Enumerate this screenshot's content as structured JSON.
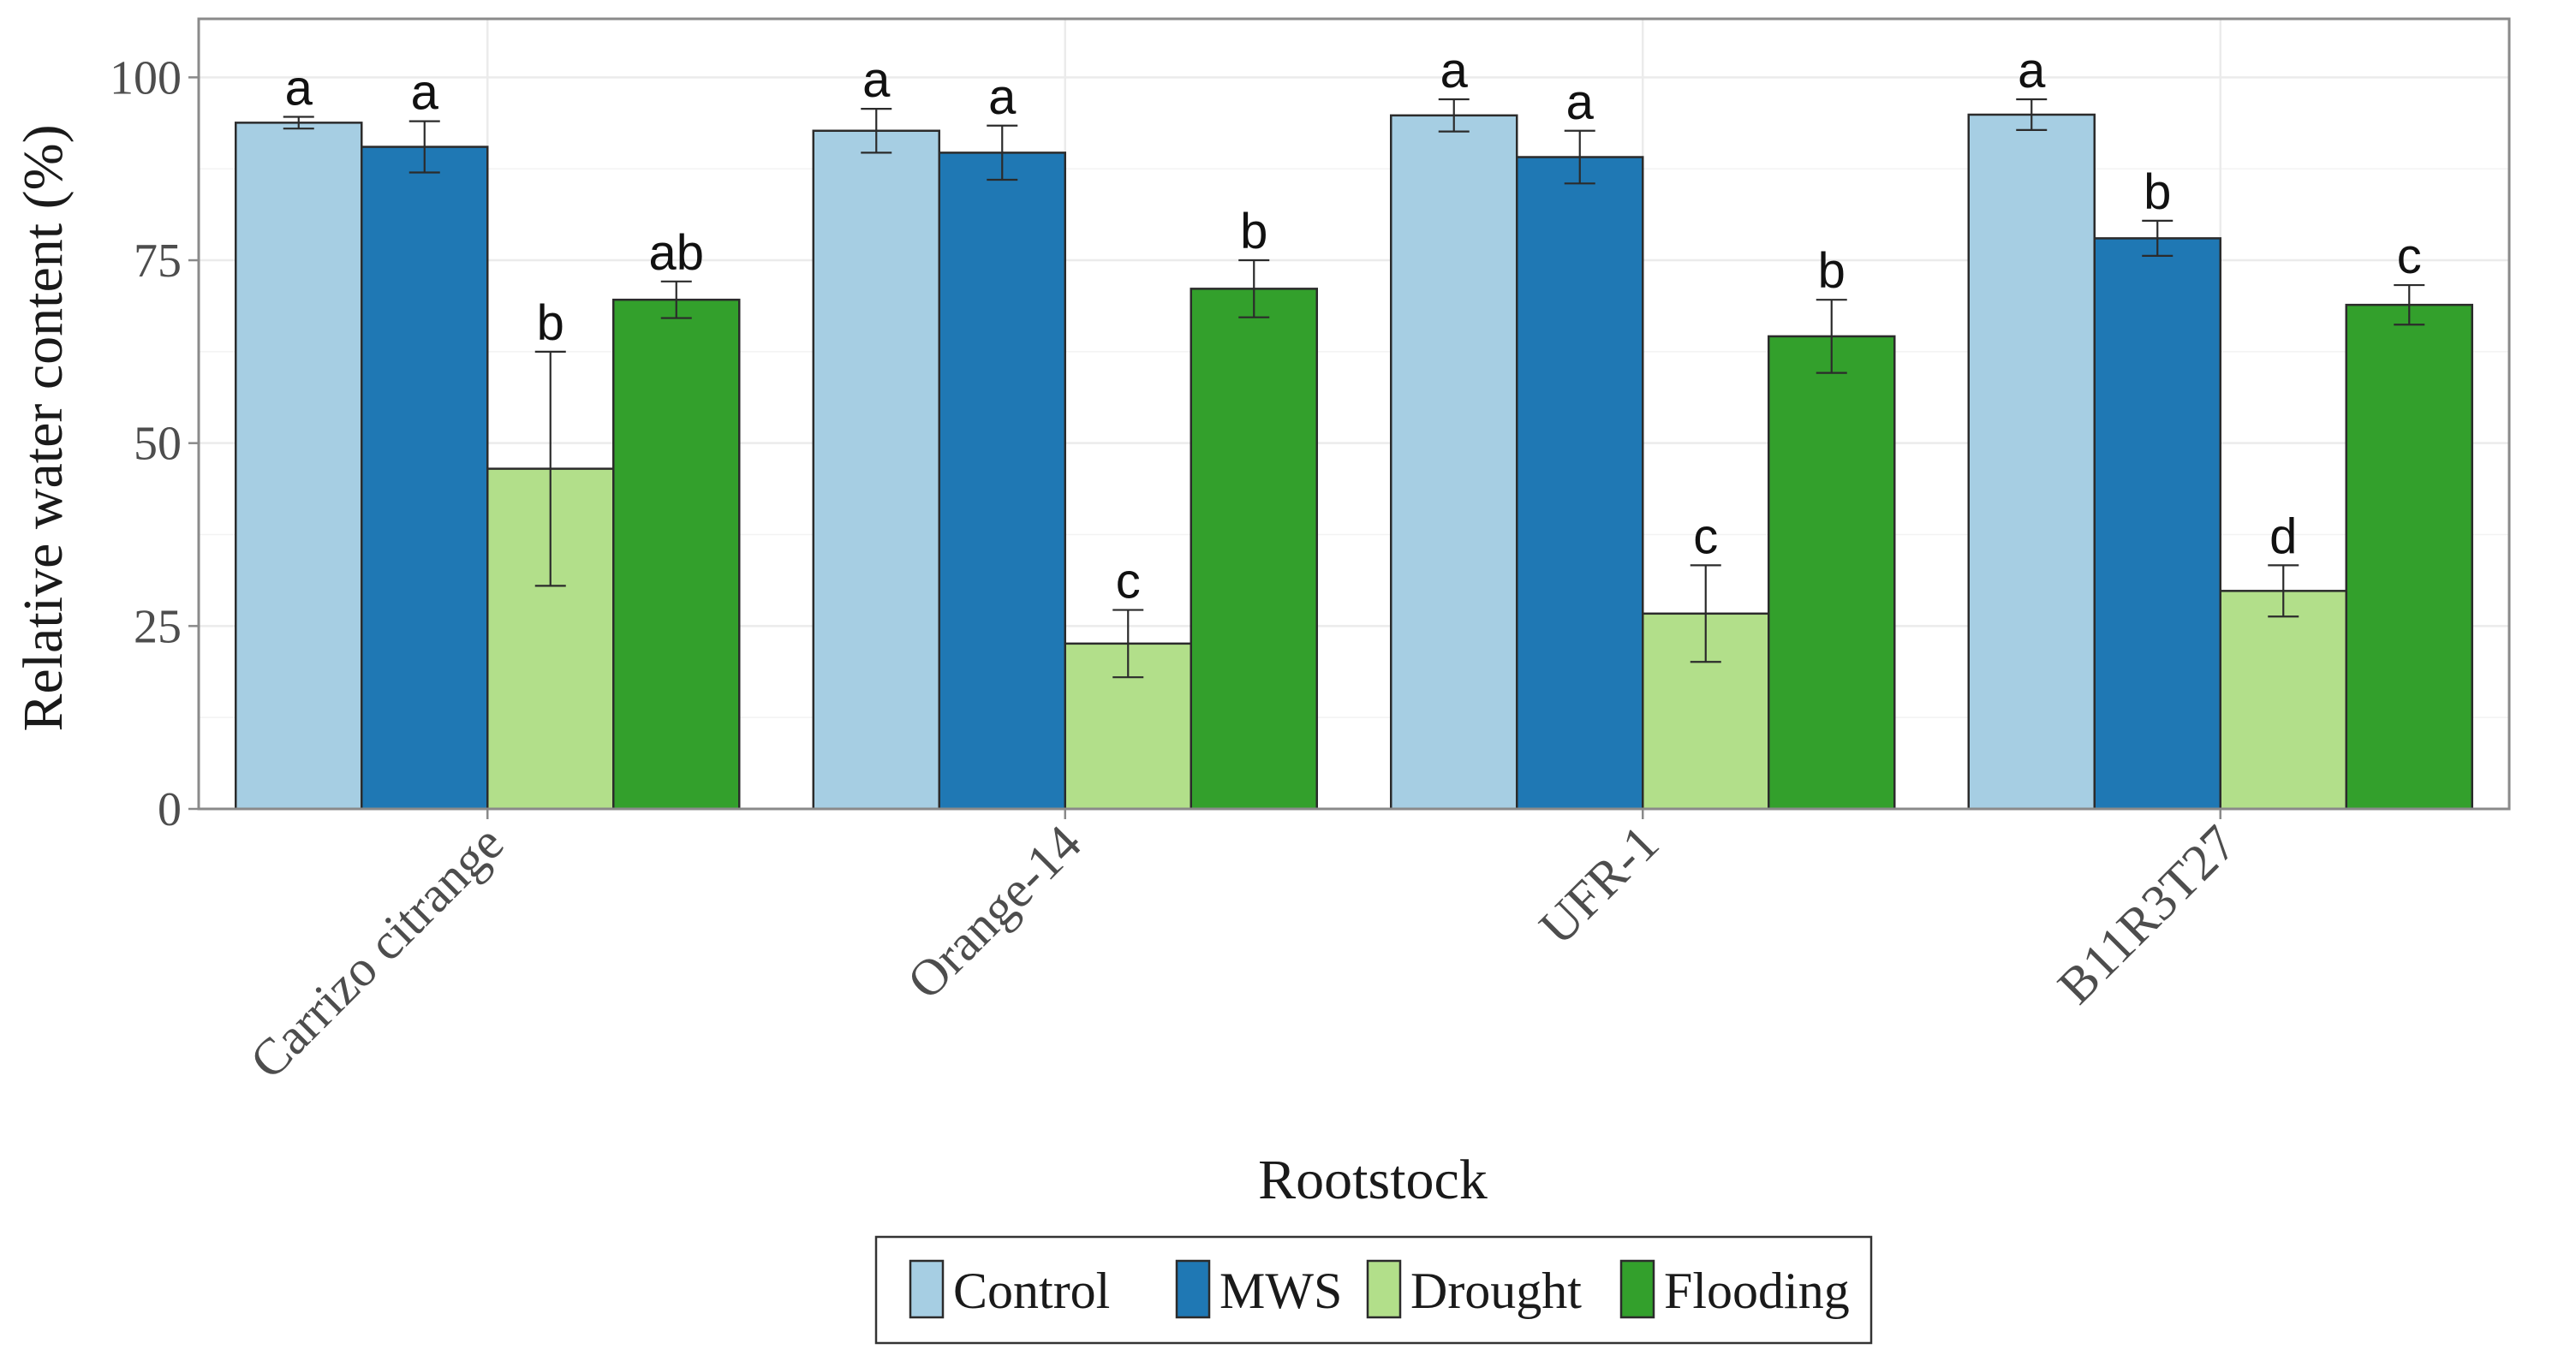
{
  "chart_data": {
    "type": "bar",
    "title": "",
    "xlabel": "Rootstock",
    "ylabel": "Relative water content (%)",
    "ylim": [
      0,
      108
    ],
    "yticks": [
      0,
      25,
      50,
      75,
      100
    ],
    "ytick_labels": [
      "0",
      "25",
      "50",
      "75",
      "100"
    ],
    "grid": true,
    "legend_position": "bottom",
    "categories": [
      "Carrizo citrange",
      "Orange-14",
      "UFR-1",
      "B11R3T27"
    ],
    "series": [
      {
        "name": "Control",
        "color": "#a6cee3",
        "values": [
          93.8,
          92.7,
          94.8,
          94.9
        ],
        "errors": [
          0.8,
          3.0,
          2.2,
          2.1
        ],
        "letters": [
          "a",
          "a",
          "a",
          "a"
        ]
      },
      {
        "name": "MWS",
        "color": "#1f78b4",
        "values": [
          90.5,
          89.7,
          89.1,
          78.0
        ],
        "errors": [
          3.5,
          3.7,
          3.6,
          2.4
        ],
        "letters": [
          "a",
          "a",
          "a",
          "b"
        ]
      },
      {
        "name": "Drought",
        "color": "#b2df8a",
        "values": [
          46.5,
          22.6,
          26.7,
          29.8
        ],
        "errors": [
          16.0,
          4.6,
          6.6,
          3.5
        ],
        "letters": [
          "b",
          "c",
          "c",
          "d"
        ]
      },
      {
        "name": "Flooding",
        "color": "#33a02c",
        "values": [
          69.6,
          71.1,
          64.6,
          68.9
        ],
        "errors": [
          2.5,
          3.9,
          5.0,
          2.7
        ],
        "letters": [
          "ab",
          "b",
          "b",
          "c"
        ]
      }
    ]
  }
}
